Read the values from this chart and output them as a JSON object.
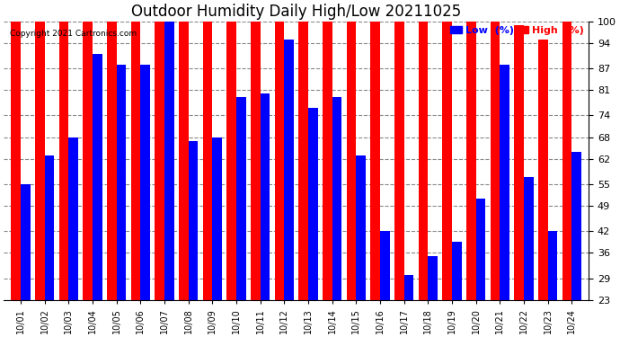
{
  "title": "Outdoor Humidity Daily High/Low 20211025",
  "copyright": "Copyright 2021 Cartronics.com",
  "dates": [
    "10/01",
    "10/02",
    "10/03",
    "10/04",
    "10/05",
    "10/06",
    "10/07",
    "10/08",
    "10/09",
    "10/10",
    "10/11",
    "10/12",
    "10/13",
    "10/14",
    "10/15",
    "10/16",
    "10/17",
    "10/18",
    "10/19",
    "10/20",
    "10/21",
    "10/22",
    "10/23",
    "10/24"
  ],
  "high": [
    100,
    100,
    100,
    100,
    100,
    100,
    100,
    100,
    100,
    100,
    100,
    100,
    100,
    100,
    100,
    100,
    100,
    100,
    100,
    100,
    100,
    99,
    95,
    100
  ],
  "low": [
    55,
    63,
    68,
    91,
    88,
    88,
    100,
    67,
    68,
    79,
    80,
    95,
    76,
    79,
    63,
    42,
    30,
    35,
    39,
    51,
    88,
    57,
    42,
    64
  ],
  "ylim_min": 23,
  "ylim_max": 100,
  "yticks": [
    23,
    29,
    36,
    42,
    49,
    55,
    62,
    68,
    74,
    81,
    87,
    94,
    100
  ],
  "bar_width": 0.4,
  "low_color": "#0000ff",
  "high_color": "#ff0000",
  "bg_color": "#ffffff",
  "title_fontsize": 12,
  "axis_bg_color": "#ffffff",
  "grid_color": "#888888",
  "legend_low_label": "Low  (%)",
  "legend_high_label": "High  (%)"
}
